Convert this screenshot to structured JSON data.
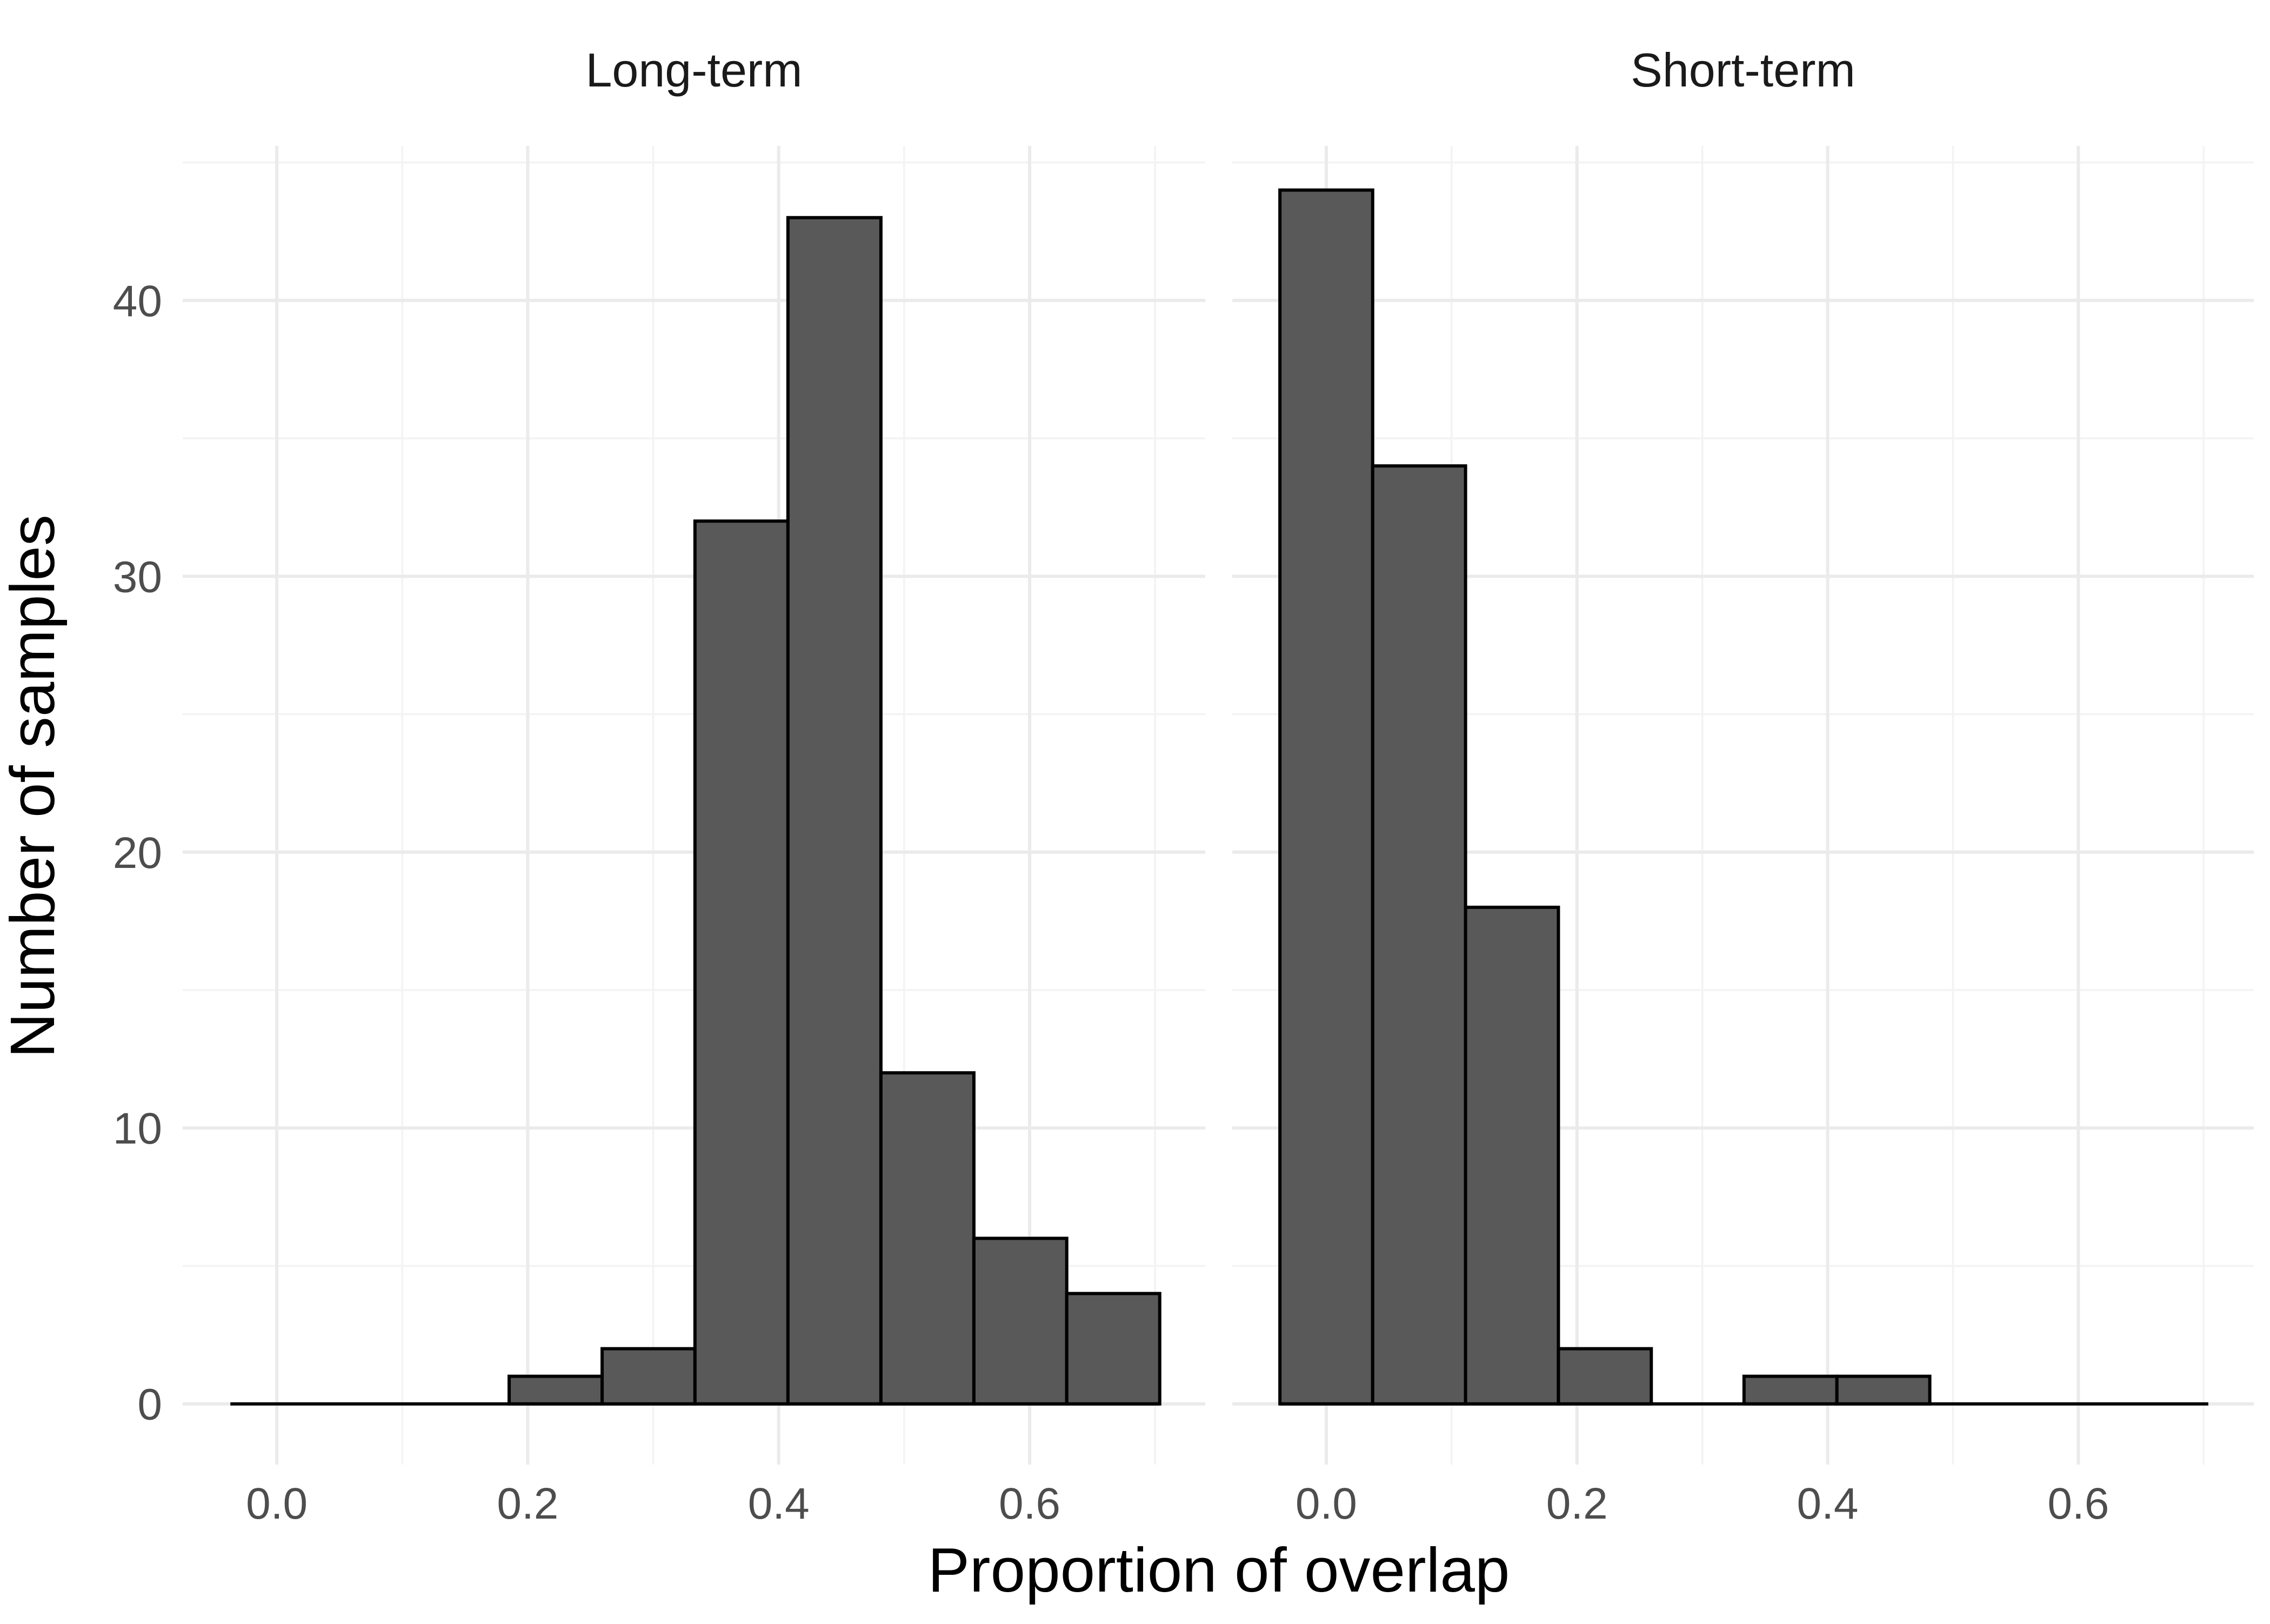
{
  "chart_data": {
    "type": "bar",
    "subtype": "histogram",
    "facets": [
      "Long-term",
      "Short-term"
    ],
    "xlabel": "Proportion of overlap",
    "ylabel": "Number of samples",
    "x_ticks": [
      "0.0",
      "0.2",
      "0.4",
      "0.6"
    ],
    "x_tick_values": [
      0.0,
      0.2,
      0.4,
      0.6
    ],
    "y_ticks": [
      "0",
      "10",
      "20",
      "30",
      "40"
    ],
    "y_tick_values": [
      0,
      10,
      20,
      30,
      40
    ],
    "xlim": [
      -0.075,
      0.74
    ],
    "ylim": [
      -2.2,
      45.6
    ],
    "grid": true,
    "bar_fill": "#595959",
    "bar_outline": "#000000",
    "bin_width": 0.0741,
    "panels": [
      {
        "name": "Long-term",
        "bins": [
          {
            "x0": -0.037,
            "x1": 0.037,
            "count": 0
          },
          {
            "x0": 0.037,
            "x1": 0.1111,
            "count": 0
          },
          {
            "x0": 0.1111,
            "x1": 0.1852,
            "count": 0
          },
          {
            "x0": 0.1852,
            "x1": 0.2593,
            "count": 1
          },
          {
            "x0": 0.2593,
            "x1": 0.3333,
            "count": 2
          },
          {
            "x0": 0.3333,
            "x1": 0.4074,
            "count": 32
          },
          {
            "x0": 0.4074,
            "x1": 0.4815,
            "count": 43
          },
          {
            "x0": 0.4815,
            "x1": 0.5556,
            "count": 12
          },
          {
            "x0": 0.5556,
            "x1": 0.6296,
            "count": 6
          },
          {
            "x0": 0.6296,
            "x1": 0.7037,
            "count": 4
          }
        ]
      },
      {
        "name": "Short-term",
        "bins": [
          {
            "x0": -0.037,
            "x1": 0.037,
            "count": 44
          },
          {
            "x0": 0.037,
            "x1": 0.1111,
            "count": 34
          },
          {
            "x0": 0.1111,
            "x1": 0.1852,
            "count": 18
          },
          {
            "x0": 0.1852,
            "x1": 0.2593,
            "count": 2
          },
          {
            "x0": 0.2593,
            "x1": 0.3333,
            "count": 0
          },
          {
            "x0": 0.3333,
            "x1": 0.4074,
            "count": 1
          },
          {
            "x0": 0.4074,
            "x1": 0.4815,
            "count": 1
          },
          {
            "x0": 0.4815,
            "x1": 0.5556,
            "count": 0
          },
          {
            "x0": 0.5556,
            "x1": 0.6296,
            "count": 0
          },
          {
            "x0": 0.6296,
            "x1": 0.7037,
            "count": 0
          }
        ]
      }
    ]
  }
}
